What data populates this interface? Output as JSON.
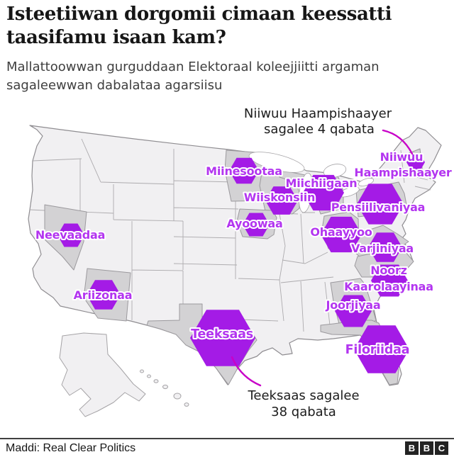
{
  "header": {
    "title": "Isteetiiwan dorgomii cimaan keessatti taasifamu isaan kam?",
    "subtitle": "Mallattoowwan gurguddaan Elektoraal koleejjiitti argaman sagaleewwan dabalataa agarsiisu"
  },
  "map": {
    "state_labels": [
      "Miinesootaa",
      "Miichiigaan",
      "Wiiskonsiin",
      "Ayoowaa",
      "Neevaadaa",
      "Ariizonaa",
      "Teeksaas",
      "Ohaayyoo",
      "Pensiilivaniyaa",
      "Niiwuu",
      "Haampishaayer",
      "Varjiniyaa",
      "Noorz",
      "Kaarolaayinaa",
      "Joorjiyaa",
      "Filoriidaa"
    ]
  },
  "annotations": {
    "new_hampshire": {
      "line1": "Niiwuu Haampishaayer",
      "line2": "sagalee 4 qabata"
    },
    "texas": {
      "line1": "Teeksaas sagalee",
      "line2": "38 qabata"
    }
  },
  "footer": {
    "source": "Maddi: Real Clear Politics",
    "logo": [
      "B",
      "B",
      "C"
    ]
  },
  "colors": {
    "hexagon": "#a41be6",
    "state_label": "#b335f0",
    "swing_state_fill": "#d3d2d4",
    "state_fill": "#f1f0f2",
    "state_border": "#a5a3a6",
    "annotation_line": "#c800c8"
  }
}
